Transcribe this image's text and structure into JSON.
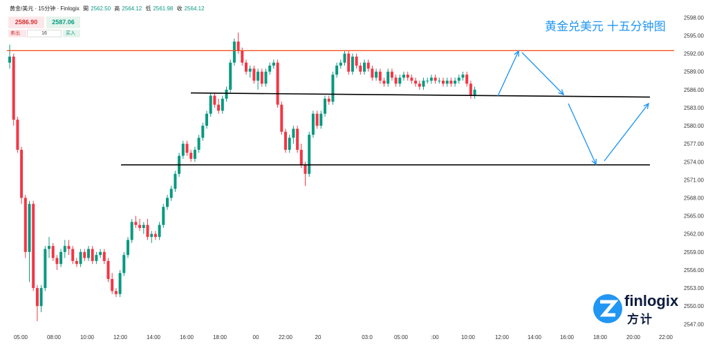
{
  "header": {
    "symbol": "黄金/美元 · 15分钟 · Finlogix",
    "open_label": "開",
    "open": "2562.50",
    "high_label": "高",
    "high": "2564.12",
    "low_label": "低",
    "low": "2561.98",
    "close_label": "收",
    "close": "2564.12"
  },
  "trade": {
    "sell_price": "2586.90",
    "buy_price": "2587.06",
    "sell_label": "卖出",
    "buy_label": "买入",
    "quantity": "16"
  },
  "title": "黄金兑美元 十五分钟图",
  "logo": {
    "text": "finlogix",
    "cn": "方计"
  },
  "colors": {
    "up": "#089981",
    "down": "#f23645",
    "resistance": "#f4511e",
    "support": "#000000",
    "arrow": "#2196f3"
  },
  "chart_data": {
    "type": "candlestick",
    "y_ticks": [
      "2598.00",
      "2595.00",
      "2592.00",
      "2589.00",
      "2586.00",
      "2583.00",
      "2580.00",
      "2577.00",
      "2574.00",
      "2571.00",
      "2568.00",
      "2565.00",
      "2562.00",
      "2559.00",
      "2556.00",
      "2553.00",
      "2550.00",
      "2547.00"
    ],
    "ylim": [
      2546,
      2600
    ],
    "x_ticks": [
      "05:00",
      "08:00",
      "10:00",
      "12:00",
      "14:00",
      "16:00",
      "18:00",
      "00",
      "22:00",
      "20",
      "03:0",
      "05:00",
      ":00",
      "10:00",
      "12:00",
      "14:00",
      "16:00",
      "18:00",
      "20:00",
      "22:00"
    ],
    "candles": [
      [
        2590.5,
        2593.5,
        2589.5,
        2591.5
      ],
      [
        2591.5,
        2592.0,
        2580.0,
        2581.0
      ],
      [
        2581.0,
        2581.5,
        2575.5,
        2576.0
      ],
      [
        2576.0,
        2576.5,
        2567.0,
        2568.0
      ],
      [
        2568.0,
        2568.5,
        2558.0,
        2559.0
      ],
      [
        2559.0,
        2567.5,
        2554.0,
        2567.0
      ],
      [
        2567.0,
        2567.5,
        2552.5,
        2553.0
      ],
      [
        2553.0,
        2553.5,
        2547.5,
        2550.0
      ],
      [
        2550.0,
        2553.5,
        2549.0,
        2553.0
      ],
      [
        2553.0,
        2560.0,
        2552.5,
        2559.5
      ],
      [
        2559.5,
        2561.5,
        2558.0,
        2560.0
      ],
      [
        2560.0,
        2560.5,
        2557.5,
        2558.0
      ],
      [
        2558.0,
        2558.5,
        2556.0,
        2557.0
      ],
      [
        2557.0,
        2559.5,
        2556.5,
        2559.0
      ],
      [
        2559.0,
        2561.0,
        2558.0,
        2560.0
      ],
      [
        2560.0,
        2561.0,
        2558.5,
        2559.5
      ],
      [
        2559.5,
        2560.0,
        2557.0,
        2557.5
      ],
      [
        2557.5,
        2558.0,
        2556.5,
        2557.0
      ],
      [
        2557.0,
        2559.5,
        2556.5,
        2559.0
      ],
      [
        2559.0,
        2559.5,
        2557.5,
        2558.0
      ],
      [
        2558.0,
        2560.0,
        2557.5,
        2559.5
      ],
      [
        2559.5,
        2560.0,
        2557.0,
        2557.5
      ],
      [
        2557.5,
        2559.0,
        2557.0,
        2558.5
      ],
      [
        2558.5,
        2559.5,
        2558.0,
        2559.0
      ],
      [
        2559.0,
        2559.5,
        2557.0,
        2557.5
      ],
      [
        2557.5,
        2558.0,
        2554.0,
        2554.5
      ],
      [
        2554.5,
        2555.5,
        2552.0,
        2552.5
      ],
      [
        2552.5,
        2553.0,
        2551.5,
        2552.0
      ],
      [
        2552.0,
        2556.0,
        2551.5,
        2555.5
      ],
      [
        2555.5,
        2559.0,
        2555.0,
        2558.5
      ],
      [
        2558.5,
        2561.5,
        2558.0,
        2561.0
      ],
      [
        2561.0,
        2564.5,
        2560.5,
        2564.0
      ],
      [
        2564.0,
        2565.0,
        2563.0,
        2563.5
      ],
      [
        2563.5,
        2564.5,
        2562.5,
        2563.0
      ],
      [
        2563.0,
        2564.0,
        2562.0,
        2563.5
      ],
      [
        2563.5,
        2564.5,
        2561.0,
        2561.5
      ],
      [
        2561.5,
        2562.5,
        2560.5,
        2562.0
      ],
      [
        2562.0,
        2562.5,
        2561.0,
        2561.5
      ],
      [
        2561.5,
        2564.0,
        2561.0,
        2563.5
      ],
      [
        2563.5,
        2567.0,
        2563.0,
        2566.5
      ],
      [
        2566.5,
        2568.5,
        2566.0,
        2568.0
      ],
      [
        2568.0,
        2570.0,
        2567.5,
        2569.5
      ],
      [
        2569.5,
        2572.5,
        2569.0,
        2572.0
      ],
      [
        2572.0,
        2575.5,
        2571.5,
        2575.0
      ],
      [
        2575.0,
        2577.5,
        2574.5,
        2577.0
      ],
      [
        2577.0,
        2577.5,
        2575.0,
        2575.5
      ],
      [
        2575.5,
        2576.0,
        2574.0,
        2574.5
      ],
      [
        2574.5,
        2576.5,
        2574.0,
        2576.0
      ],
      [
        2576.0,
        2578.5,
        2575.5,
        2578.0
      ],
      [
        2578.0,
        2580.5,
        2577.5,
        2580.0
      ],
      [
        2580.0,
        2582.5,
        2579.5,
        2582.0
      ],
      [
        2582.0,
        2585.5,
        2581.5,
        2585.0
      ],
      [
        2585.0,
        2585.5,
        2583.0,
        2583.5
      ],
      [
        2583.5,
        2584.5,
        2582.0,
        2582.5
      ],
      [
        2582.5,
        2585.0,
        2582.0,
        2584.5
      ],
      [
        2584.5,
        2586.5,
        2584.0,
        2586.0
      ],
      [
        2586.0,
        2591.0,
        2585.5,
        2590.5
      ],
      [
        2590.5,
        2594.5,
        2590.0,
        2594.0
      ],
      [
        2594.0,
        2595.5,
        2592.0,
        2592.5
      ],
      [
        2592.5,
        2593.0,
        2590.0,
        2590.5
      ],
      [
        2590.5,
        2591.0,
        2588.5,
        2589.0
      ],
      [
        2589.0,
        2590.0,
        2588.0,
        2589.5
      ],
      [
        2589.5,
        2590.0,
        2587.0,
        2587.5
      ],
      [
        2587.5,
        2589.5,
        2586.0,
        2589.0
      ],
      [
        2589.0,
        2589.5,
        2586.5,
        2587.0
      ],
      [
        2587.0,
        2589.5,
        2586.5,
        2589.0
      ],
      [
        2589.0,
        2590.5,
        2588.5,
        2590.0
      ],
      [
        2590.0,
        2591.0,
        2589.5,
        2590.5
      ],
      [
        2590.5,
        2591.0,
        2583.0,
        2583.5
      ],
      [
        2583.5,
        2584.0,
        2578.5,
        2579.0
      ],
      [
        2579.0,
        2579.5,
        2575.5,
        2576.0
      ],
      [
        2576.0,
        2578.5,
        2575.5,
        2578.0
      ],
      [
        2578.0,
        2580.0,
        2577.0,
        2579.5
      ],
      [
        2579.5,
        2580.0,
        2575.5,
        2576.0
      ],
      [
        2576.0,
        2577.0,
        2573.0,
        2573.5
      ],
      [
        2573.5,
        2574.0,
        2570.0,
        2572.0
      ],
      [
        2572.0,
        2579.0,
        2571.5,
        2578.5
      ],
      [
        2578.5,
        2582.5,
        2578.0,
        2582.0
      ],
      [
        2582.0,
        2582.5,
        2579.5,
        2580.0
      ],
      [
        2580.0,
        2582.5,
        2579.5,
        2582.0
      ],
      [
        2582.0,
        2585.0,
        2581.5,
        2584.5
      ],
      [
        2584.5,
        2585.0,
        2583.5,
        2584.0
      ],
      [
        2584.0,
        2589.0,
        2583.5,
        2588.5
      ],
      [
        2588.5,
        2590.5,
        2588.0,
        2590.0
      ],
      [
        2590.0,
        2591.0,
        2589.5,
        2590.5
      ],
      [
        2590.5,
        2592.5,
        2590.0,
        2592.0
      ],
      [
        2592.0,
        2592.5,
        2588.5,
        2589.0
      ],
      [
        2589.0,
        2592.0,
        2588.5,
        2591.5
      ],
      [
        2591.5,
        2592.0,
        2589.5,
        2590.0
      ],
      [
        2590.0,
        2590.5,
        2588.5,
        2589.0
      ],
      [
        2589.0,
        2591.0,
        2588.5,
        2590.5
      ],
      [
        2590.5,
        2591.0,
        2589.0,
        2589.5
      ],
      [
        2589.5,
        2590.0,
        2587.5,
        2588.0
      ],
      [
        2588.0,
        2589.5,
        2587.5,
        2589.0
      ],
      [
        2589.0,
        2589.5,
        2587.0,
        2587.5
      ],
      [
        2587.5,
        2588.0,
        2586.5,
        2587.0
      ],
      [
        2587.0,
        2589.5,
        2586.5,
        2589.0
      ],
      [
        2589.0,
        2589.5,
        2587.5,
        2588.0
      ],
      [
        2588.0,
        2588.5,
        2586.5,
        2587.0
      ],
      [
        2587.0,
        2588.5,
        2586.5,
        2588.0
      ],
      [
        2588.0,
        2589.0,
        2587.5,
        2588.5
      ],
      [
        2588.5,
        2589.0,
        2587.5,
        2588.0
      ],
      [
        2588.0,
        2588.5,
        2587.0,
        2587.5
      ],
      [
        2587.5,
        2588.0,
        2586.5,
        2587.0
      ],
      [
        2587.0,
        2587.5,
        2586.0,
        2586.5
      ],
      [
        2586.5,
        2588.0,
        2586.0,
        2587.5
      ],
      [
        2587.5,
        2588.0,
        2587.0,
        2587.5
      ],
      [
        2587.5,
        2588.5,
        2587.0,
        2588.0
      ],
      [
        2588.0,
        2588.5,
        2587.0,
        2587.5
      ],
      [
        2587.5,
        2588.0,
        2587.0,
        2587.5
      ],
      [
        2587.5,
        2588.0,
        2586.5,
        2587.0
      ],
      [
        2587.0,
        2588.0,
        2586.5,
        2587.5
      ],
      [
        2587.5,
        2588.0,
        2586.5,
        2587.0
      ],
      [
        2587.0,
        2588.0,
        2586.5,
        2587.5
      ],
      [
        2587.5,
        2588.5,
        2587.0,
        2588.0
      ],
      [
        2588.0,
        2589.0,
        2587.5,
        2588.5
      ],
      [
        2588.5,
        2589.0,
        2586.5,
        2587.0
      ],
      [
        2587.0,
        2587.5,
        2584.5,
        2585.0
      ],
      [
        2585.0,
        2586.5,
        2584.5,
        2586.0
      ]
    ],
    "levels": [
      {
        "name": "resistance",
        "value": 2592.5
      },
      {
        "name": "upper-support",
        "value": 2585.0
      },
      {
        "name": "lower-support",
        "value": 2573.5
      }
    ],
    "projection": [
      "12:30",
      "13:30",
      "15:30",
      "16:30",
      "17:30",
      "20:45"
    ]
  }
}
